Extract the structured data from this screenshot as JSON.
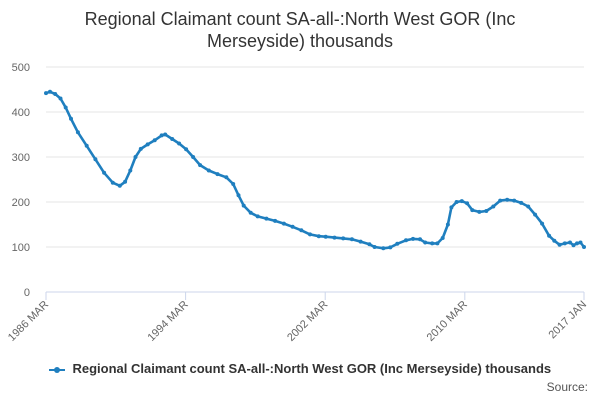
{
  "colors": {
    "series": "#1f7fbf",
    "grid": "#e6e6e6",
    "axis": "#ccd6eb",
    "text": "#333333",
    "tick_text": "#666666"
  },
  "chart_data": {
    "type": "line",
    "title_lines": [
      "Regional Claimant count SA-all-:North West GOR (Inc",
      "Merseyside) thousands"
    ],
    "xlabel": "",
    "ylabel": "",
    "ylim": [
      0,
      500
    ],
    "grid": true,
    "legend_position": "bottom",
    "y_ticks": [
      0,
      100,
      200,
      300,
      400,
      500
    ],
    "y_tick_labels": [
      "0",
      "100",
      "200",
      "300",
      "400",
      "500"
    ],
    "x_tick_labels": [
      {
        "label": "1986 MAR",
        "t": 1986.17
      },
      {
        "label": "1994 MAR",
        "t": 1994.17
      },
      {
        "label": "2002 MAR",
        "t": 2002.17
      },
      {
        "label": "2010 MAR",
        "t": 2010.17
      },
      {
        "label": "2017 JAN",
        "t": 2017.0
      }
    ],
    "x_range": [
      1986.17,
      2017.0
    ],
    "series": [
      {
        "name": "Regional Claimant count SA-all-:North West GOR (Inc Merseyside) thousands",
        "points": [
          [
            1986.17,
            442
          ],
          [
            1986.4,
            445
          ],
          [
            1986.7,
            440
          ],
          [
            1987.0,
            430
          ],
          [
            1987.3,
            410
          ],
          [
            1987.6,
            385
          ],
          [
            1988.0,
            355
          ],
          [
            1988.5,
            325
          ],
          [
            1989.0,
            295
          ],
          [
            1989.5,
            265
          ],
          [
            1990.0,
            243
          ],
          [
            1990.4,
            236
          ],
          [
            1990.7,
            245
          ],
          [
            1991.0,
            270
          ],
          [
            1991.3,
            300
          ],
          [
            1991.6,
            318
          ],
          [
            1992.0,
            328
          ],
          [
            1992.4,
            337
          ],
          [
            1992.8,
            348
          ],
          [
            1993.0,
            350
          ],
          [
            1993.4,
            340
          ],
          [
            1993.8,
            330
          ],
          [
            1994.2,
            317
          ],
          [
            1994.6,
            300
          ],
          [
            1995.0,
            282
          ],
          [
            1995.5,
            270
          ],
          [
            1996.0,
            262
          ],
          [
            1996.5,
            255
          ],
          [
            1996.9,
            240
          ],
          [
            1997.2,
            215
          ],
          [
            1997.5,
            192
          ],
          [
            1997.9,
            176
          ],
          [
            1998.3,
            168
          ],
          [
            1998.8,
            163
          ],
          [
            1999.3,
            158
          ],
          [
            1999.8,
            152
          ],
          [
            2000.3,
            145
          ],
          [
            2000.8,
            137
          ],
          [
            2001.3,
            128
          ],
          [
            2001.8,
            124
          ],
          [
            2002.2,
            123
          ],
          [
            2002.7,
            121
          ],
          [
            2003.2,
            119
          ],
          [
            2003.7,
            117
          ],
          [
            2004.2,
            112
          ],
          [
            2004.7,
            106
          ],
          [
            2005.0,
            100
          ],
          [
            2005.5,
            97
          ],
          [
            2005.9,
            99
          ],
          [
            2006.3,
            107
          ],
          [
            2006.8,
            115
          ],
          [
            2007.2,
            118
          ],
          [
            2007.6,
            117
          ],
          [
            2007.9,
            110
          ],
          [
            2008.3,
            108
          ],
          [
            2008.6,
            108
          ],
          [
            2008.9,
            120
          ],
          [
            2009.2,
            150
          ],
          [
            2009.4,
            188
          ],
          [
            2009.7,
            200
          ],
          [
            2010.0,
            202
          ],
          [
            2010.3,
            197
          ],
          [
            2010.6,
            182
          ],
          [
            2011.0,
            178
          ],
          [
            2011.4,
            180
          ],
          [
            2011.8,
            190
          ],
          [
            2012.2,
            203
          ],
          [
            2012.6,
            205
          ],
          [
            2013.0,
            203
          ],
          [
            2013.4,
            198
          ],
          [
            2013.8,
            190
          ],
          [
            2014.2,
            172
          ],
          [
            2014.6,
            152
          ],
          [
            2015.0,
            125
          ],
          [
            2015.3,
            114
          ],
          [
            2015.6,
            105
          ],
          [
            2015.9,
            108
          ],
          [
            2016.2,
            110
          ],
          [
            2016.4,
            104
          ],
          [
            2016.6,
            108
          ],
          [
            2016.8,
            110
          ],
          [
            2017.0,
            100
          ]
        ]
      }
    ]
  },
  "legend": {
    "label": "Regional Claimant count SA-all-:North West GOR (Inc Merseyside) thousands"
  },
  "footer": {
    "source_label": "Source:"
  }
}
